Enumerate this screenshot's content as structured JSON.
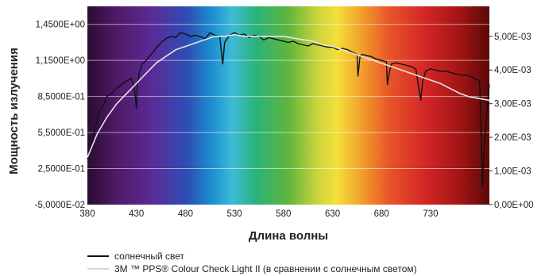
{
  "chart_data": {
    "type": "line",
    "xlabel": "Длина волны",
    "ylabel": "Мощность излучения",
    "xlim": [
      380,
      790
    ],
    "x_ticks": [
      "380",
      "430",
      "480",
      "530",
      "580",
      "630",
      "680",
      "730"
    ],
    "x_tick_values": [
      380,
      430,
      480,
      530,
      580,
      630,
      680,
      730
    ],
    "ylim_left": [
      -0.05,
      1.6
    ],
    "y_left_ticks": [
      "-5,0000E-02",
      "2,5000E-01",
      "5,5000E-01",
      "8,5000E-01",
      "1,1500E+00",
      "1,4500E+00"
    ],
    "y_left_tick_values": [
      -0.05,
      0.25,
      0.55,
      0.85,
      1.15,
      1.45
    ],
    "ylim_right": [
      0,
      0.00589
    ],
    "y_right_ticks": [
      "0,00E+00",
      "1,00E-03",
      "2,00E-03",
      "3,00E-03",
      "4,00E-03",
      "5,00E-03"
    ],
    "y_right_tick_values": [
      0,
      0.001,
      0.002,
      0.003,
      0.004,
      0.005
    ],
    "grid": true,
    "background": "visible spectrum gradient",
    "legend_position": "bottom",
    "series": [
      {
        "name": "солнечный свет",
        "axis": "left",
        "color": "#111111",
        "x": [
          380,
          385,
          390,
          393,
          396,
          400,
          405,
          410,
          415,
          420,
          425,
          428,
          430,
          431,
          433,
          436,
          440,
          445,
          450,
          455,
          460,
          465,
          470,
          475,
          480,
          485,
          490,
          495,
          500,
          505,
          510,
          515,
          518,
          520,
          525,
          530,
          535,
          540,
          545,
          550,
          555,
          560,
          565,
          570,
          575,
          580,
          585,
          590,
          595,
          600,
          605,
          610,
          615,
          620,
          625,
          630,
          635,
          640,
          645,
          650,
          655,
          656,
          658,
          660,
          665,
          670,
          675,
          680,
          685,
          686,
          688,
          690,
          695,
          700,
          705,
          710,
          715,
          718,
          720,
          722,
          725,
          730,
          735,
          740,
          745,
          750,
          755,
          760,
          765,
          770,
          775,
          780,
          783,
          785,
          788,
          790
        ],
        "y": [
          0.33,
          0.48,
          0.66,
          0.74,
          0.77,
          0.85,
          0.88,
          0.92,
          0.95,
          0.98,
          1.0,
          0.92,
          0.75,
          0.95,
          1.05,
          1.12,
          1.15,
          1.2,
          1.25,
          1.3,
          1.33,
          1.35,
          1.34,
          1.38,
          1.37,
          1.35,
          1.36,
          1.35,
          1.33,
          1.38,
          1.36,
          1.35,
          1.12,
          1.3,
          1.36,
          1.38,
          1.36,
          1.37,
          1.34,
          1.36,
          1.35,
          1.32,
          1.34,
          1.33,
          1.32,
          1.31,
          1.3,
          1.31,
          1.29,
          1.28,
          1.27,
          1.29,
          1.28,
          1.27,
          1.26,
          1.26,
          1.24,
          1.25,
          1.24,
          1.22,
          1.2,
          1.02,
          1.18,
          1.2,
          1.19,
          1.18,
          1.16,
          1.15,
          1.14,
          0.95,
          1.05,
          1.12,
          1.13,
          1.12,
          1.11,
          1.1,
          1.08,
          0.92,
          0.82,
          0.98,
          1.06,
          1.08,
          1.07,
          1.06,
          1.06,
          1.05,
          1.04,
          1.03,
          1.03,
          1.02,
          1.0,
          0.98,
          0.1,
          0.45,
          0.78,
          0.95
        ]
      },
      {
        "name": "3M ™ PPS® Colour Check Light II (в сравнении с солнечным светом)",
        "axis": "right",
        "color": "#e6e6e6",
        "x": [
          380,
          390,
          400,
          410,
          420,
          430,
          440,
          450,
          460,
          470,
          480,
          490,
          500,
          510,
          520,
          530,
          540,
          550,
          560,
          570,
          580,
          590,
          600,
          610,
          620,
          630,
          640,
          650,
          660,
          670,
          680,
          690,
          700,
          710,
          720,
          730,
          740,
          750,
          760,
          770,
          780,
          790
        ],
        "y": [
          0.0014,
          0.0021,
          0.0026,
          0.003,
          0.0033,
          0.0036,
          0.0039,
          0.0042,
          0.0044,
          0.0046,
          0.0047,
          0.0048,
          0.0049,
          0.005,
          0.005,
          0.00505,
          0.005,
          0.005,
          0.005,
          0.005,
          0.005,
          0.00495,
          0.0049,
          0.00485,
          0.00475,
          0.0047,
          0.0046,
          0.0045,
          0.0044,
          0.0043,
          0.0042,
          0.0041,
          0.004,
          0.0039,
          0.0038,
          0.0037,
          0.0036,
          0.00345,
          0.0033,
          0.0032,
          0.00315,
          0.0031
        ]
      }
    ]
  }
}
